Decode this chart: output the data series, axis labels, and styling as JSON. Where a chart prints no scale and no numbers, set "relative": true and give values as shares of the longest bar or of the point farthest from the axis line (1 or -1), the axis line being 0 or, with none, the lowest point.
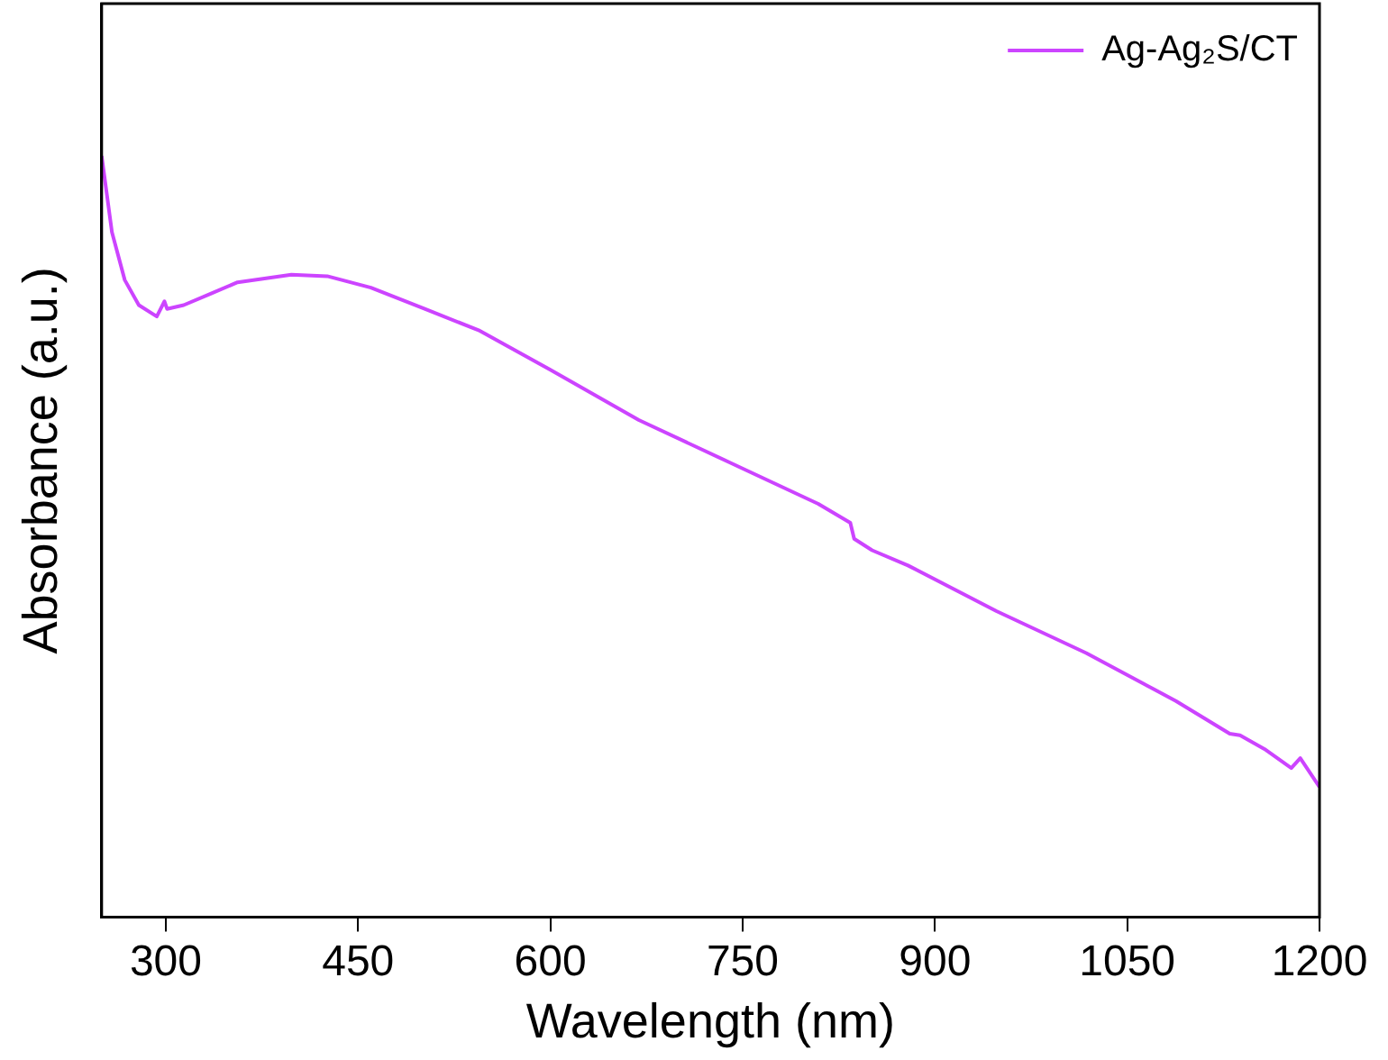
{
  "chart_data": {
    "type": "line",
    "xlabel": "Wavelength (nm)",
    "ylabel": "Absorbance (a.u.)",
    "relative": true,
    "legend": "top right",
    "grid": false,
    "marker": "none",
    "line_style": "solid",
    "xlim": [
      250,
      1200
    ],
    "xticks": [
      300,
      450,
      600,
      750,
      900,
      1050,
      1200
    ],
    "series": [
      {
        "name": "Ag-Ag₂S/CT",
        "color": "#cc44ff",
        "x": [
          250,
          258,
          268,
          279,
          293,
          299,
          301,
          314,
          335,
          356,
          398,
          426,
          460,
          502,
          544,
          600,
          669,
          739,
          809,
          834,
          837,
          851,
          879,
          948,
          1018,
          1088,
          1130,
          1138,
          1157,
          1178,
          1185,
          1200
        ],
        "values": [
          1.0,
          0.9,
          0.837,
          0.804,
          0.789,
          0.809,
          0.799,
          0.804,
          0.819,
          0.834,
          0.844,
          0.842,
          0.827,
          0.799,
          0.771,
          0.719,
          0.653,
          0.598,
          0.543,
          0.518,
          0.497,
          0.482,
          0.462,
          0.402,
          0.347,
          0.284,
          0.241,
          0.239,
          0.221,
          0.196,
          0.209,
          0.171
        ]
      }
    ]
  }
}
